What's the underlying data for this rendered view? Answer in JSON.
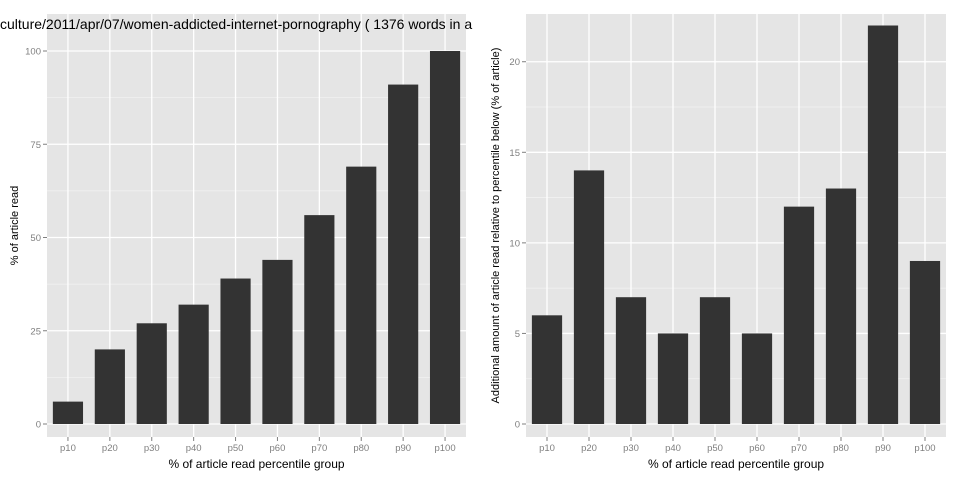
{
  "chart_data": [
    {
      "type": "bar",
      "title": "culture/2011/apr/07/women-addicted-internet-pornography ( 1376 words in a",
      "xlabel": "% of article read percentile group",
      "ylabel": "% of article read",
      "categories": [
        "p10",
        "p20",
        "p30",
        "p40",
        "p50",
        "p60",
        "p70",
        "p80",
        "p90",
        "p100"
      ],
      "values": [
        6,
        20,
        27,
        32,
        39,
        44,
        56,
        69,
        91,
        100
      ],
      "ylim": [
        0,
        100
      ],
      "yticks": [
        0,
        25,
        50,
        75,
        100
      ],
      "grid": true,
      "bar_color": "#333333",
      "panel_color": "#e5e5e5"
    },
    {
      "type": "bar",
      "title": "",
      "xlabel": "% of article read percentile group",
      "ylabel": "Additional amount of article read relative to percentile below (% of article)",
      "categories": [
        "p10",
        "p20",
        "p30",
        "p40",
        "p50",
        "p60",
        "p70",
        "p80",
        "p90",
        "p100"
      ],
      "values": [
        6,
        14,
        7,
        5,
        7,
        5,
        12,
        13,
        22,
        9
      ],
      "ylim": [
        0,
        22
      ],
      "yticks": [
        0,
        5,
        10,
        15,
        20
      ],
      "grid": true,
      "bar_color": "#333333",
      "panel_color": "#e5e5e5"
    }
  ]
}
